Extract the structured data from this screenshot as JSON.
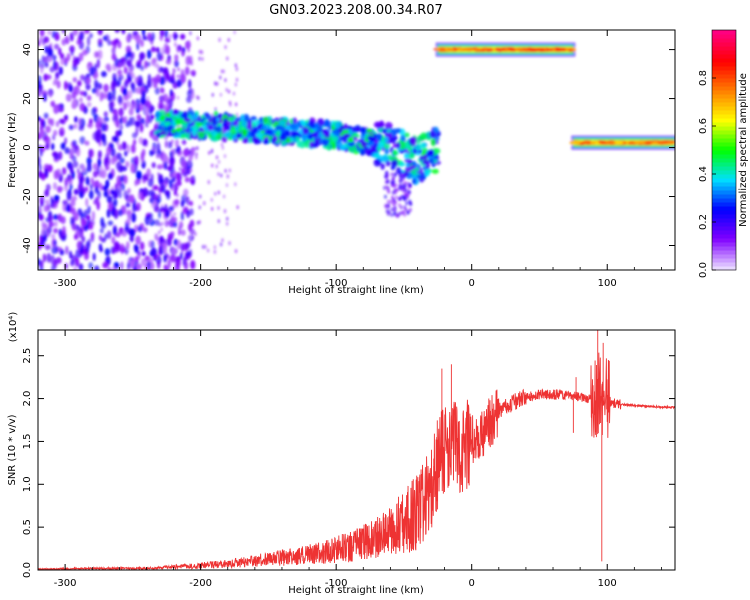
{
  "title": "GN03.2023.208.00.34.R07",
  "chart_data": [
    {
      "type": "heatmap",
      "xlabel": "Height of straight line (km)",
      "ylabel": "Frequency (Hz)",
      "xlim": [
        -320,
        150
      ],
      "ylim": [
        -50,
        48
      ],
      "xticks": [
        -300,
        -200,
        -100,
        0,
        100
      ],
      "yticks": [
        -40,
        -20,
        0,
        20,
        40
      ],
      "colorbar": {
        "label": "Normalized spectral amplitude",
        "range": [
          0.0,
          1.0
        ],
        "ticks": [
          "0.0",
          "0.2",
          "0.4",
          "0.6",
          "0.8"
        ],
        "colors": [
          "#e8d8ff",
          "#8000ff",
          "#0000ff",
          "#00e0ff",
          "#00ff00",
          "#ffff00",
          "#ff8000",
          "#ff0000",
          "#ff0080"
        ]
      },
      "features": [
        {
          "name": "diffuse noise",
          "x_range": [
            -320,
            -215
          ],
          "freq_range": [
            -50,
            48
          ],
          "amplitude": 0.15
        },
        {
          "name": "main band",
          "points": [
            [
              -232,
              10
            ],
            [
              -200,
              9
            ],
            [
              -150,
              7
            ],
            [
              -100,
              5
            ],
            [
              -60,
              0
            ],
            [
              -40,
              -6
            ],
            [
              -25,
              0
            ]
          ],
          "amplitude": 0.4
        },
        {
          "name": "upper band",
          "x_range": [
            -25,
            75
          ],
          "freq": 40,
          "amplitude": 0.9
        },
        {
          "name": "right band",
          "x_range": [
            75,
            150
          ],
          "freq": 2,
          "amplitude": 0.85
        }
      ]
    },
    {
      "type": "line",
      "xlabel": "Height of straight line (km)",
      "ylabel": "SNR (10 * v/v)",
      "multiplier": "(x10⁴)",
      "xlim": [
        -320,
        150
      ],
      "ylim": [
        0,
        2.8
      ],
      "xticks": [
        -300,
        -200,
        -100,
        0,
        100
      ],
      "yticks": [
        0.0,
        0.5,
        1.0,
        1.5,
        2.0,
        2.5
      ],
      "color": "#ee3333",
      "series": [
        {
          "x": [
            -320,
            -280,
            -240,
            -220,
            -200,
            -180,
            -160,
            -140,
            -120,
            -100,
            -80,
            -70,
            -60,
            -50,
            -40,
            -30,
            -25,
            -20,
            -15,
            -10,
            0,
            10,
            20,
            30,
            40,
            50,
            60,
            70,
            80,
            90,
            95,
            100,
            110,
            120,
            130,
            140,
            150
          ],
          "y": [
            0.01,
            0.02,
            0.02,
            0.04,
            0.06,
            0.08,
            0.12,
            0.16,
            0.2,
            0.26,
            0.35,
            0.42,
            0.5,
            0.62,
            0.75,
            0.95,
            1.25,
            1.45,
            1.5,
            1.35,
            1.5,
            1.65,
            1.85,
            1.95,
            2.02,
            2.05,
            2.05,
            2.03,
            2.02,
            2.0,
            2.05,
            1.97,
            1.93,
            1.92,
            1.91,
            1.9,
            1.9
          ]
        }
      ]
    }
  ]
}
